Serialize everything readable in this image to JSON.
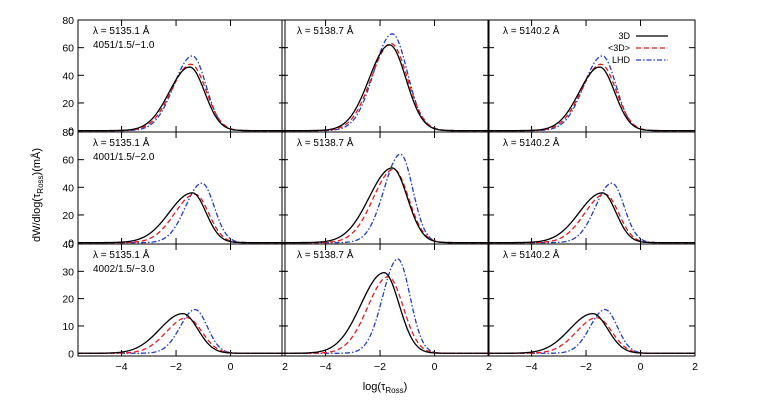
{
  "chart_data": {
    "type": "line",
    "xlabel": "log(τ",
    "xlabel_sub": "Ross",
    "xlabel_end": ")",
    "ylabel": "dW/dlog(τ",
    "ylabel_sub": "Ross",
    "ylabel_end": ")(mÅ)",
    "xlim": [
      -5.6,
      2
    ],
    "x_ticks": [
      -4,
      -2,
      0,
      2
    ],
    "grid": false,
    "legend": {
      "placement": "top-right",
      "entries": [
        {
          "name": "3D",
          "color": "#000000",
          "dash": "solid"
        },
        {
          "name": "<3D>",
          "color": "#e41a1c",
          "dash": "dashed"
        },
        {
          "name": "LHD",
          "color": "#1f3ccc",
          "dash": "dashdot"
        }
      ]
    },
    "rows": [
      {
        "model": "4051/1.5/−1.0",
        "ylim": [
          -1,
          80
        ],
        "y_ticks": [
          0,
          20,
          40,
          60,
          80
        ],
        "panels": [
          {
            "wavelength": "λ = 5135.1 Å",
            "curves": {
              "3D": {
                "peak": 46,
                "center": -1.5,
                "left": 0.75,
                "right": 0.55
              },
              "<3D>": {
                "peak": 48,
                "center": -1.45,
                "left": 0.72,
                "right": 0.55
              },
              "LHD": {
                "peak": 54,
                "center": -1.4,
                "left": 0.68,
                "right": 0.5
              }
            }
          },
          {
            "wavelength": "λ = 5138.7 Å",
            "curves": {
              "3D": {
                "peak": 62,
                "center": -1.65,
                "left": 0.75,
                "right": 0.6
              },
              "<3D>": {
                "peak": 63,
                "center": -1.6,
                "left": 0.72,
                "right": 0.6
              },
              "LHD": {
                "peak": 70,
                "center": -1.55,
                "left": 0.68,
                "right": 0.55
              }
            }
          },
          {
            "wavelength": "λ = 5140.2 Å",
            "curves": {
              "3D": {
                "peak": 46,
                "center": -1.5,
                "left": 0.75,
                "right": 0.55
              },
              "<3D>": {
                "peak": 48,
                "center": -1.45,
                "left": 0.72,
                "right": 0.55
              },
              "LHD": {
                "peak": 54,
                "center": -1.4,
                "left": 0.68,
                "right": 0.5
              }
            }
          }
        ]
      },
      {
        "model": "4001/1.5/−2.0",
        "ylim": [
          -1,
          80
        ],
        "y_ticks": [
          0,
          20,
          40,
          60,
          80
        ],
        "panels": [
          {
            "wavelength": "λ = 5135.1 Å",
            "curves": {
              "3D": {
                "peak": 36,
                "center": -1.4,
                "left": 0.85,
                "right": 0.5
              },
              "<3D>": {
                "peak": 35,
                "center": -1.3,
                "left": 0.75,
                "right": 0.5
              },
              "LHD": {
                "peak": 43,
                "center": -1.05,
                "left": 0.6,
                "right": 0.45
              }
            }
          },
          {
            "wavelength": "λ = 5138.7 Å",
            "curves": {
              "3D": {
                "peak": 54,
                "center": -1.55,
                "left": 0.85,
                "right": 0.55
              },
              "<3D>": {
                "peak": 53,
                "center": -1.5,
                "left": 0.75,
                "right": 0.55
              },
              "LHD": {
                "peak": 64,
                "center": -1.25,
                "left": 0.6,
                "right": 0.45
              }
            }
          },
          {
            "wavelength": "λ = 5140.2 Å",
            "curves": {
              "3D": {
                "peak": 36,
                "center": -1.4,
                "left": 0.85,
                "right": 0.5
              },
              "<3D>": {
                "peak": 35,
                "center": -1.3,
                "left": 0.75,
                "right": 0.5
              },
              "LHD": {
                "peak": 43,
                "center": -1.05,
                "left": 0.6,
                "right": 0.45
              }
            }
          }
        ]
      },
      {
        "model": "4002/1.5/−3.0",
        "ylim": [
          -1,
          40
        ],
        "y_ticks": [
          0,
          10,
          20,
          30,
          40
        ],
        "panels": [
          {
            "wavelength": "λ = 5135.1 Å",
            "curves": {
              "3D": {
                "peak": 14.5,
                "center": -1.75,
                "left": 0.85,
                "right": 0.55
              },
              "<3D>": {
                "peak": 13,
                "center": -1.6,
                "left": 0.75,
                "right": 0.55
              },
              "LHD": {
                "peak": 16,
                "center": -1.3,
                "left": 0.55,
                "right": 0.45
              }
            }
          },
          {
            "wavelength": "λ = 5138.7 Å",
            "curves": {
              "3D": {
                "peak": 29.5,
                "center": -1.85,
                "left": 0.85,
                "right": 0.55
              },
              "<3D>": {
                "peak": 28,
                "center": -1.7,
                "left": 0.75,
                "right": 0.55
              },
              "LHD": {
                "peak": 34.5,
                "center": -1.35,
                "left": 0.55,
                "right": 0.45
              }
            }
          },
          {
            "wavelength": "λ = 5140.2 Å",
            "curves": {
              "3D": {
                "peak": 14.5,
                "center": -1.75,
                "left": 0.85,
                "right": 0.55
              },
              "<3D>": {
                "peak": 13,
                "center": -1.6,
                "left": 0.75,
                "right": 0.55
              },
              "LHD": {
                "peak": 16,
                "center": -1.3,
                "left": 0.55,
                "right": 0.45
              }
            }
          }
        ]
      }
    ]
  }
}
